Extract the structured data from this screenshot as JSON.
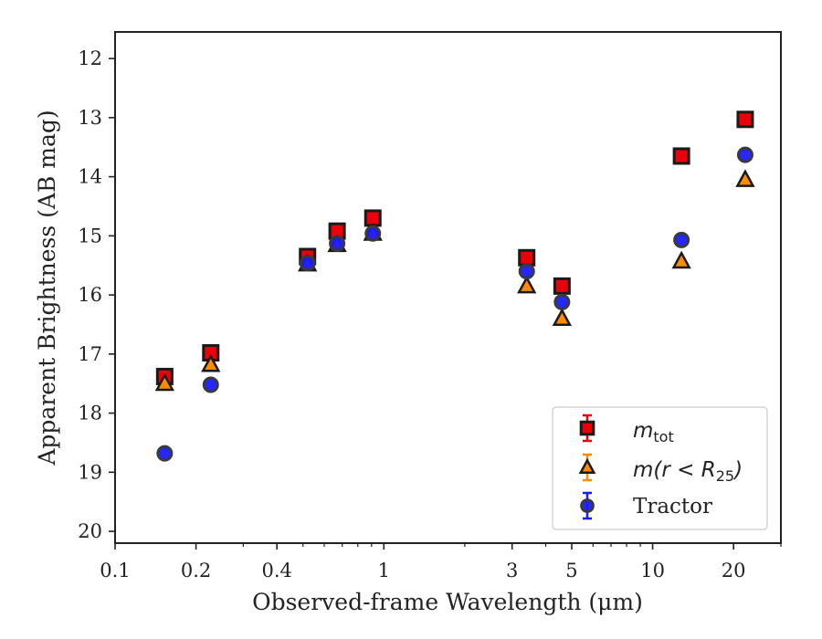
{
  "chart_data": {
    "type": "scatter",
    "xlabel": "Observed-frame Wavelength (μm)",
    "ylabel": "Apparent Brightness (AB mag)",
    "x_scale": "log",
    "y_inverted": true,
    "xlim": [
      0.1,
      30
    ],
    "ylim": [
      20.2,
      11.55
    ],
    "x_ticks": [
      0.1,
      0.2,
      0.4,
      1,
      3,
      5,
      10,
      20
    ],
    "x_tick_labels": [
      "0.1",
      "0.2",
      "0.4",
      "1",
      "3",
      "5",
      "10",
      "20"
    ],
    "y_ticks": [
      12,
      13,
      14,
      15,
      16,
      17,
      18,
      19,
      20
    ],
    "y_tick_labels": [
      "12",
      "13",
      "14",
      "15",
      "16",
      "17",
      "18",
      "19",
      "20"
    ],
    "grid": false,
    "legend_position": "bottom-right",
    "series": [
      {
        "name": "m_tot",
        "legend_main": "m",
        "legend_sub": "tot",
        "marker": "square",
        "color": "#e8000b",
        "points": [
          {
            "x": 0.153,
            "y": 17.38
          },
          {
            "x": 0.227,
            "y": 16.98
          },
          {
            "x": 0.52,
            "y": 15.35
          },
          {
            "x": 0.67,
            "y": 14.92
          },
          {
            "x": 0.91,
            "y": 14.7
          },
          {
            "x": 3.4,
            "y": 15.37
          },
          {
            "x": 4.6,
            "y": 15.85
          },
          {
            "x": 12.8,
            "y": 13.65
          },
          {
            "x": 22.1,
            "y": 13.03
          }
        ]
      },
      {
        "name": "m(r < R25)",
        "legend_main": "m(r < R",
        "legend_sub": "25",
        "legend_tail": ")",
        "marker": "triangle",
        "color": "#ff8c00",
        "points": [
          {
            "x": 0.153,
            "y": 17.5
          },
          {
            "x": 0.227,
            "y": 17.18
          },
          {
            "x": 0.52,
            "y": 15.48
          },
          {
            "x": 0.67,
            "y": 15.15
          },
          {
            "x": 0.91,
            "y": 14.96
          },
          {
            "x": 3.4,
            "y": 15.85
          },
          {
            "x": 4.6,
            "y": 16.4
          },
          {
            "x": 12.8,
            "y": 15.43
          },
          {
            "x": 22.1,
            "y": 14.05
          }
        ]
      },
      {
        "name": "Tractor",
        "marker": "circle",
        "color": "#1a1aff",
        "points": [
          {
            "x": 0.153,
            "y": 18.68
          },
          {
            "x": 0.227,
            "y": 17.52
          },
          {
            "x": 0.52,
            "y": 15.46
          },
          {
            "x": 0.67,
            "y": 15.13
          },
          {
            "x": 0.91,
            "y": 14.96
          },
          {
            "x": 3.4,
            "y": 15.6
          },
          {
            "x": 4.6,
            "y": 16.12
          },
          {
            "x": 12.8,
            "y": 15.07
          },
          {
            "x": 22.1,
            "y": 13.63
          }
        ]
      }
    ]
  }
}
